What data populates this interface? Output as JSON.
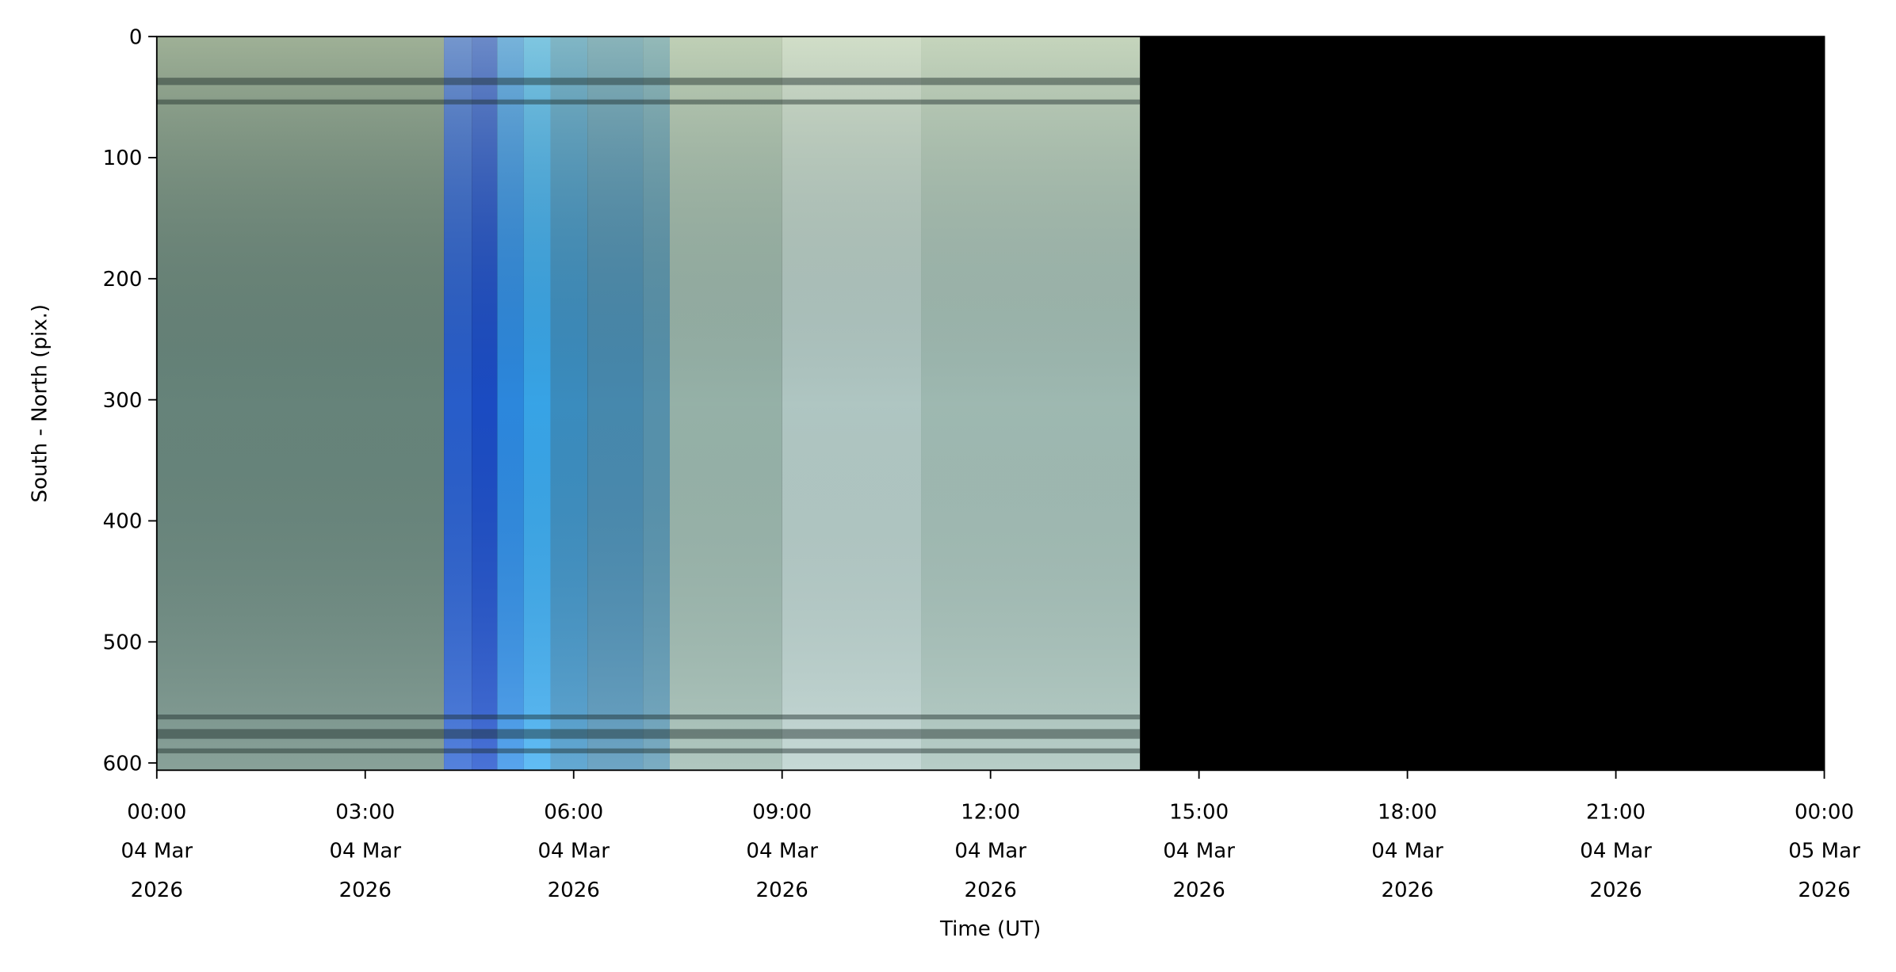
{
  "chart_data": {
    "type": "keogram",
    "x_label": "Time (UT)",
    "y_label": "South - North (pix.)",
    "xlim": [
      "2026-03-04T00:00",
      "2026-03-05T00:00"
    ],
    "ylim": [
      606,
      0
    ],
    "yticks": [
      0,
      100,
      200,
      300,
      400,
      500,
      600
    ],
    "xticks": [
      {
        "value": "2026-03-04T00:00",
        "label": [
          "00:00",
          "04 Mar",
          "2026"
        ]
      },
      {
        "value": "2026-03-04T03:00",
        "label": [
          "03:00",
          "04 Mar",
          "2026"
        ]
      },
      {
        "value": "2026-03-04T06:00",
        "label": [
          "06:00",
          "04 Mar",
          "2026"
        ]
      },
      {
        "value": "2026-03-04T09:00",
        "label": [
          "09:00",
          "04 Mar",
          "2026"
        ]
      },
      {
        "value": "2026-03-04T12:00",
        "label": [
          "12:00",
          "04 Mar",
          "2026"
        ]
      },
      {
        "value": "2026-03-04T15:00",
        "label": [
          "15:00",
          "04 Mar",
          "2026"
        ]
      },
      {
        "value": "2026-03-04T18:00",
        "label": [
          "18:00",
          "04 Mar",
          "2026"
        ]
      },
      {
        "value": "2026-03-04T21:00",
        "label": [
          "21:00",
          "04 Mar",
          "2026"
        ]
      },
      {
        "value": "2026-03-05T00:00",
        "label": [
          "00:00",
          "05 Mar",
          "2026"
        ]
      }
    ],
    "background": "#000000",
    "bands": [
      {
        "start": "2026-03-04T00:00",
        "end": "2026-03-04T04:08",
        "color": "#6b8a80"
      },
      {
        "start": "2026-03-04T04:08",
        "end": "2026-03-04T04:32",
        "color": "#2a62d4"
      },
      {
        "start": "2026-03-04T04:32",
        "end": "2026-03-04T04:54",
        "color": "#1c4fcc"
      },
      {
        "start": "2026-03-04T04:54",
        "end": "2026-03-04T05:17",
        "color": "#2e8ee8"
      },
      {
        "start": "2026-03-04T05:17",
        "end": "2026-03-04T05:40",
        "color": "#3aacf2"
      },
      {
        "start": "2026-03-04T05:40",
        "end": "2026-03-04T06:12",
        "color": "#3d93c8"
      },
      {
        "start": "2026-03-04T06:12",
        "end": "2026-03-04T07:00",
        "color": "#4a8fb6"
      },
      {
        "start": "2026-03-04T07:00",
        "end": "2026-03-04T07:23",
        "color": "#5a98b4"
      },
      {
        "start": "2026-03-04T07:23",
        "end": "2026-03-04T09:00",
        "color": "#9dbab0"
      },
      {
        "start": "2026-03-04T09:00",
        "end": "2026-03-04T11:00",
        "color": "#b8d0cc"
      },
      {
        "start": "2026-03-04T11:00",
        "end": "2026-03-04T14:09",
        "color": "#a6c2ba"
      }
    ]
  }
}
